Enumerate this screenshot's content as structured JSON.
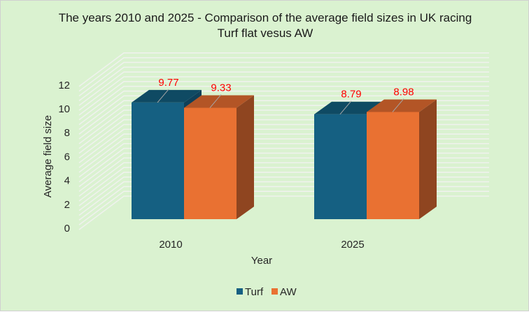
{
  "chart_data": {
    "type": "bar",
    "style": "3d-clustered-column",
    "title": "The years 2010 and 2025 - Comparison of the average field sizes in UK racing",
    "subtitle": "Turf flat vesus AW",
    "xlabel": "Year",
    "ylabel": "Average field size",
    "categories": [
      "2010",
      "2025"
    ],
    "series": [
      {
        "name": "Turf",
        "values": [
          9.77,
          8.79
        ],
        "color": "#156082",
        "top_color": "#0f4a63",
        "side_color": "#0e4059"
      },
      {
        "name": "AW",
        "values": [
          9.33,
          8.98
        ],
        "color": "#e97132",
        "top_color": "#b35526",
        "side_color": "#8f4520"
      }
    ],
    "data_labels": [
      [
        "9.77",
        "8.79"
      ],
      [
        "9.33",
        "8.98"
      ]
    ],
    "data_label_color": "#ff0000",
    "ylim": [
      0,
      12
    ],
    "yticks": [
      "0",
      "2",
      "4",
      "6",
      "8",
      "10",
      "12"
    ],
    "ytick_values": [
      0,
      2,
      4,
      6,
      8,
      10,
      12
    ],
    "minor_grid_step": 0.4,
    "grid": true,
    "legend": {
      "position": "bottom",
      "entries": [
        "Turf",
        "AW"
      ]
    },
    "background": "#daf2d0"
  }
}
